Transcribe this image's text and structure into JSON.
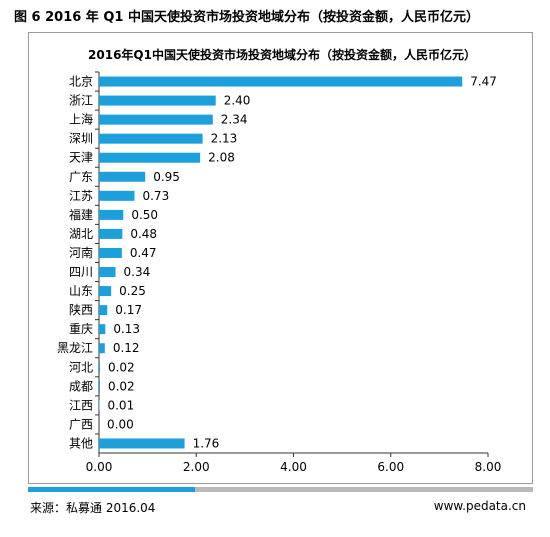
{
  "figure_title": "图 6 2016 年 Q1 中国天使投资市场投资地域分布（按投资金额，人民币亿元）",
  "footer": {
    "source": "来源：私募通 2016.04",
    "website": "www.pedata.cn",
    "progress": 0.33
  },
  "colors": {
    "bar": "#1d9fdc",
    "progress_fill": "#1d9fdc",
    "progress_track": "#b9b9b9",
    "frame": "#9a9a9a"
  },
  "chart_data": {
    "type": "bar",
    "orientation": "horizontal",
    "title": "2016年Q1中国天使投资市场投资地域分布（按投资金额，人民币亿元）",
    "categories": [
      "北京",
      "浙江",
      "上海",
      "深圳",
      "天津",
      "广东",
      "江苏",
      "福建",
      "湖北",
      "河南",
      "四川",
      "山东",
      "陕西",
      "重庆",
      "黑龙江",
      "河北",
      "成都",
      "江西",
      "广西",
      "其他"
    ],
    "values": [
      7.47,
      2.4,
      2.34,
      2.13,
      2.08,
      0.95,
      0.73,
      0.5,
      0.48,
      0.47,
      0.34,
      0.25,
      0.17,
      0.13,
      0.12,
      0.02,
      0.02,
      0.01,
      0.0,
      1.76
    ],
    "value_labels": [
      "7.47",
      "2.40",
      "2.34",
      "2.13",
      "2.08",
      "0.95",
      "0.73",
      "0.50",
      "0.48",
      "0.47",
      "0.34",
      "0.25",
      "0.17",
      "0.13",
      "0.12",
      "0.02",
      "0.02",
      "0.01",
      "0.00",
      "1.76"
    ],
    "xlim": [
      0,
      8
    ],
    "xticks": [
      0,
      2,
      4,
      6,
      8
    ],
    "xtick_labels": [
      "0.00",
      "2.00",
      "4.00",
      "6.00",
      "8.00"
    ],
    "xlabel": "",
    "ylabel": "",
    "grid": false,
    "legend": "none"
  }
}
